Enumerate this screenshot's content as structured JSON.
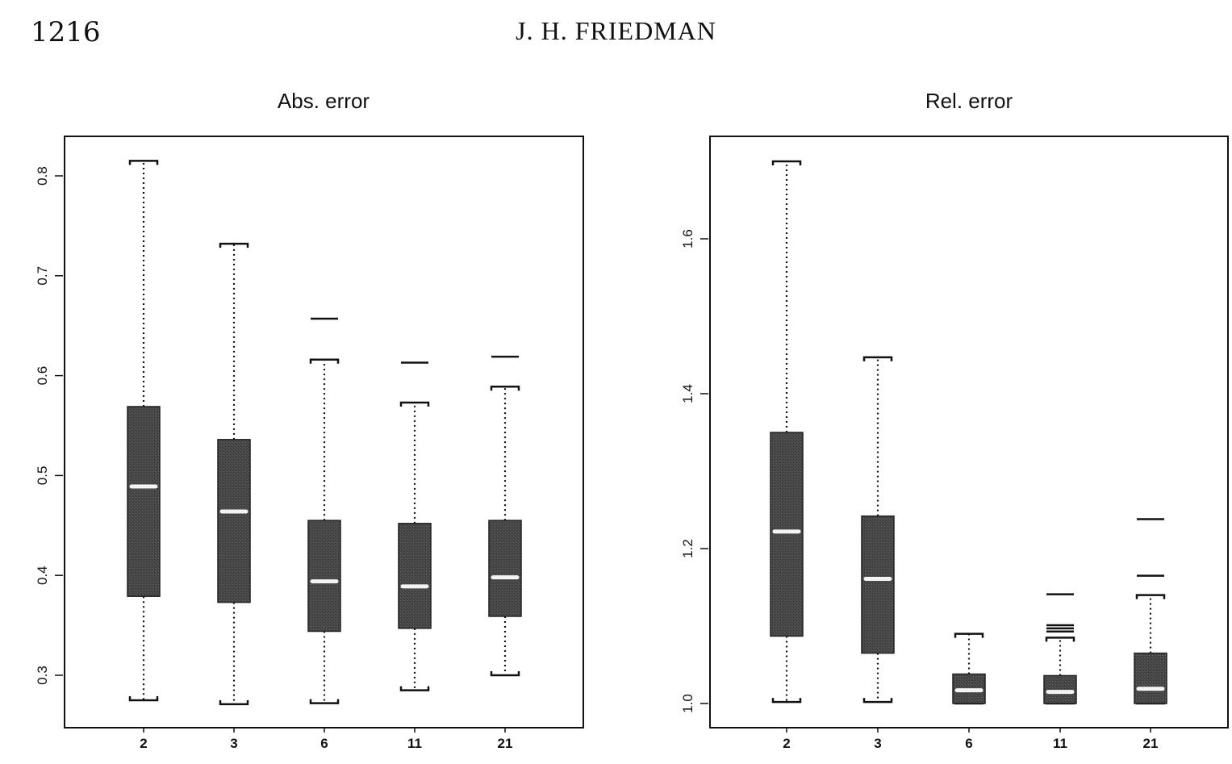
{
  "header": {
    "page_number": "1216",
    "running_head": "J. H. FRIEDMAN"
  },
  "chart_data": [
    {
      "type": "boxplot",
      "title": "Abs. error",
      "xlabel": "",
      "ylabel": "",
      "categories": [
        "2",
        "3",
        "6",
        "11",
        "21"
      ],
      "yticks": [
        0.3,
        0.4,
        0.5,
        0.6,
        0.7,
        0.8
      ],
      "ytick_labels": [
        "0.3",
        "0.4",
        "0.5",
        "0.6",
        "0.7",
        "0.8"
      ],
      "ylim": [
        0.25,
        0.84
      ],
      "boxes": [
        {
          "category": "2",
          "whisker_low": 0.275,
          "q1": 0.379,
          "median": 0.489,
          "q3": 0.569,
          "whisker_high": 0.815,
          "outliers": []
        },
        {
          "category": "3",
          "whisker_low": 0.271,
          "q1": 0.373,
          "median": 0.464,
          "q3": 0.536,
          "whisker_high": 0.732,
          "outliers": []
        },
        {
          "category": "6",
          "whisker_low": 0.272,
          "q1": 0.344,
          "median": 0.394,
          "q3": 0.455,
          "whisker_high": 0.616,
          "outliers": [
            0.657
          ]
        },
        {
          "category": "11",
          "whisker_low": 0.285,
          "q1": 0.347,
          "median": 0.389,
          "q3": 0.452,
          "whisker_high": 0.573,
          "outliers": [
            0.613
          ]
        },
        {
          "category": "21",
          "whisker_low": 0.3,
          "q1": 0.359,
          "median": 0.398,
          "q3": 0.455,
          "whisker_high": 0.589,
          "outliers": [
            0.619
          ]
        }
      ]
    },
    {
      "type": "boxplot",
      "title": "Rel. error",
      "xlabel": "",
      "ylabel": "",
      "categories": [
        "2",
        "3",
        "6",
        "11",
        "21"
      ],
      "yticks": [
        1.0,
        1.2,
        1.4,
        1.6
      ],
      "ytick_labels": [
        "1.0",
        "1.2",
        "1.4",
        "1.6"
      ],
      "ylim": [
        0.97,
        1.73
      ],
      "boxes": [
        {
          "category": "2",
          "whisker_low": 1.002,
          "q1": 1.087,
          "median": 1.222,
          "q3": 1.35,
          "whisker_high": 1.7,
          "outliers": []
        },
        {
          "category": "3",
          "whisker_low": 1.002,
          "q1": 1.065,
          "median": 1.161,
          "q3": 1.242,
          "whisker_high": 1.447,
          "outliers": []
        },
        {
          "category": "6",
          "whisker_low": 1.0,
          "q1": 1.0,
          "median": 1.017,
          "q3": 1.038,
          "whisker_high": 1.09,
          "outliers": []
        },
        {
          "category": "11",
          "whisker_low": 1.0,
          "q1": 1.0,
          "median": 1.015,
          "q3": 1.036,
          "whisker_high": 1.085,
          "outliers": [
            1.093,
            1.097,
            1.101,
            1.141
          ]
        },
        {
          "category": "21",
          "whisker_low": 1.0,
          "q1": 1.0,
          "median": 1.019,
          "q3": 1.065,
          "whisker_high": 1.14,
          "outliers": [
            1.165,
            1.238
          ]
        }
      ]
    }
  ],
  "style": {
    "box_fill": "#4a4a4a",
    "median_color": "#f4f4f4",
    "ink": "#111111"
  }
}
